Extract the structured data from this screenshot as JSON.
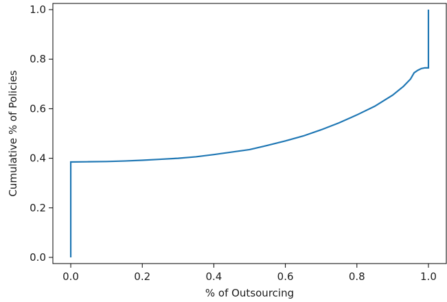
{
  "chart_data": {
    "type": "line",
    "title": "",
    "xlabel": "% of Outsourcing",
    "ylabel": "Cumulative % of Policies",
    "xlim": [
      -0.05,
      1.05
    ],
    "ylim": [
      -0.025,
      1.025
    ],
    "xticks": [
      {
        "value": 0.0,
        "label": "0.0"
      },
      {
        "value": 0.2,
        "label": "0.2"
      },
      {
        "value": 0.4,
        "label": "0.4"
      },
      {
        "value": 0.6,
        "label": "0.6"
      },
      {
        "value": 0.8,
        "label": "0.8"
      },
      {
        "value": 1.0,
        "label": "1.0"
      }
    ],
    "yticks": [
      {
        "value": 0.0,
        "label": "0.0"
      },
      {
        "value": 0.2,
        "label": "0.2"
      },
      {
        "value": 0.4,
        "label": "0.4"
      },
      {
        "value": 0.6,
        "label": "0.6"
      },
      {
        "value": 0.8,
        "label": "0.8"
      },
      {
        "value": 1.0,
        "label": "1.0"
      }
    ],
    "grid": false,
    "legend": false,
    "line_color": "#1f77b4",
    "series": [
      {
        "x": [
          0.0,
          0.0,
          0.05,
          0.1,
          0.15,
          0.2,
          0.25,
          0.3,
          0.35,
          0.4,
          0.45,
          0.5,
          0.55,
          0.6,
          0.65,
          0.7,
          0.75,
          0.8,
          0.85,
          0.9,
          0.93,
          0.95,
          0.96,
          0.97,
          0.98,
          0.99,
          1.0,
          1.0
        ],
        "y": [
          0.0,
          0.385,
          0.386,
          0.387,
          0.389,
          0.392,
          0.396,
          0.4,
          0.406,
          0.415,
          0.425,
          0.435,
          0.452,
          0.47,
          0.49,
          0.515,
          0.543,
          0.575,
          0.61,
          0.655,
          0.69,
          0.72,
          0.745,
          0.755,
          0.762,
          0.765,
          0.765,
          1.0
        ]
      }
    ]
  }
}
